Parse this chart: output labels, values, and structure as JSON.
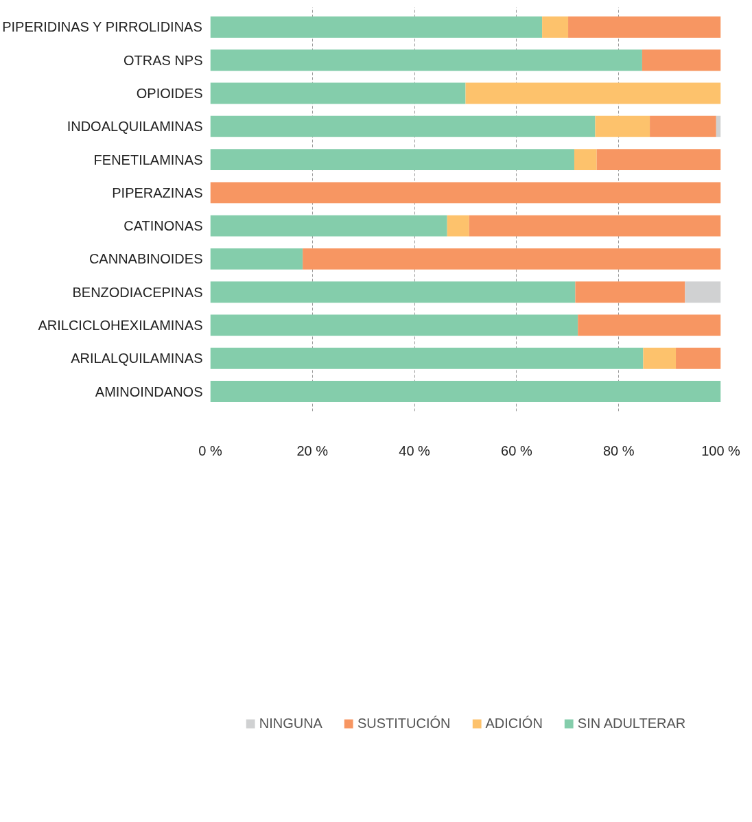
{
  "chart_data": {
    "type": "bar",
    "orientation": "horizontal",
    "stacked": true,
    "categories": [
      "PIPERIDINAS Y PIRROLIDINAS",
      "OTRAS NPS",
      "OPIOIDES",
      "INDOALQUILAMINAS",
      "FENETILAMINAS",
      "PIPERAZINAS",
      "CATINONAS",
      "CANNABINOIDES",
      "BENZODIACEPINAS",
      "ARILCICLOHEXILAMINAS",
      "ARILALQUILAMINAS",
      "AMINOINDANOS"
    ],
    "series": [
      {
        "name": "SIN ADULTERAR",
        "color": "#84cdab",
        "values": [
          65.0,
          84.6,
          50,
          75.4,
          71.3,
          0,
          46.4,
          18.1,
          71.5,
          72.0,
          84.8,
          100
        ]
      },
      {
        "name": "ADICIÓN",
        "color": "#fdc26c",
        "values": [
          5.1,
          0,
          50,
          10.7,
          4.4,
          0,
          4.3,
          0,
          0,
          0,
          6.4,
          0
        ]
      },
      {
        "name": "SUSTITUCIÓN",
        "color": "#f79662",
        "values": [
          29.9,
          15.4,
          0,
          13.0,
          24.3,
          100,
          49.3,
          81.9,
          21.5,
          28.0,
          8.8,
          0
        ]
      },
      {
        "name": "NINGUNA",
        "color": "#d0d1d2",
        "values": [
          0,
          0,
          0,
          0.9,
          0,
          0,
          0,
          0,
          7.0,
          0,
          0,
          0
        ]
      }
    ],
    "xlim": [
      0,
      100
    ],
    "xticks": [
      {
        "value": 0,
        "label": "0 %"
      },
      {
        "value": 20,
        "label": "20 %"
      },
      {
        "value": 40,
        "label": "40 %"
      },
      {
        "value": 60,
        "label": "60 %"
      },
      {
        "value": 80,
        "label": "80 %"
      },
      {
        "value": 100,
        "label": "100 %"
      }
    ],
    "grid": "x",
    "legend": "bottom"
  }
}
